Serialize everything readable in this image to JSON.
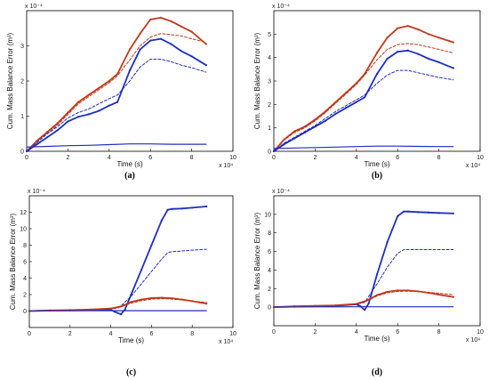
{
  "chart_data": [
    {
      "panel": "(a)",
      "type": "line",
      "xlabel": "Time (s)",
      "ylabel": "Cum. Mass Balance Error (m³)",
      "x_multiplier": "x 10⁴",
      "y_multiplier": "x 10⁻⁴",
      "xlim": [
        0,
        10
      ],
      "ylim": [
        0,
        4
      ],
      "xticks": [
        0,
        2,
        4,
        6,
        8,
        10
      ],
      "yticks": [
        0,
        1,
        2,
        3
      ],
      "grid": false,
      "series": [
        {
          "color": "#c0391b",
          "style": "solid-marker",
          "x": [
            0,
            0.5,
            1,
            1.5,
            2,
            2.5,
            3,
            3.5,
            4,
            4.4,
            5,
            5.5,
            6,
            6.5,
            7,
            7.5,
            8,
            8.7
          ],
          "y": [
            0,
            0.3,
            0.55,
            0.8,
            1.1,
            1.4,
            1.6,
            1.8,
            2.0,
            2.2,
            2.9,
            3.35,
            3.75,
            3.8,
            3.7,
            3.55,
            3.4,
            3.05
          ]
        },
        {
          "color": "#c0391b",
          "style": "dashed",
          "x": [
            0,
            0.5,
            1,
            1.5,
            2,
            2.5,
            3,
            3.5,
            4,
            4.4,
            5,
            5.5,
            6,
            6.5,
            7,
            7.5,
            8,
            8.7
          ],
          "y": [
            0,
            0.28,
            0.5,
            0.75,
            1.05,
            1.35,
            1.55,
            1.75,
            1.95,
            2.15,
            2.6,
            3.0,
            3.25,
            3.35,
            3.32,
            3.28,
            3.2,
            3.1
          ]
        },
        {
          "color": "#1f2fbf",
          "style": "solid-marker",
          "x": [
            0,
            0.5,
            1,
            1.5,
            2,
            2.5,
            3,
            3.5,
            4,
            4.4,
            5,
            5.5,
            6,
            6.5,
            7,
            7.5,
            8,
            8.7
          ],
          "y": [
            0,
            0.2,
            0.4,
            0.6,
            0.85,
            0.98,
            1.05,
            1.15,
            1.3,
            1.4,
            2.3,
            2.9,
            3.15,
            3.2,
            3.05,
            2.85,
            2.7,
            2.45
          ]
        },
        {
          "color": "#1f2fbf",
          "style": "dashed",
          "x": [
            0,
            0.5,
            1,
            1.5,
            2,
            2.5,
            3,
            3.5,
            4,
            4.4,
            5,
            5.5,
            6,
            6.5,
            7,
            7.5,
            8,
            8.7
          ],
          "y": [
            0,
            0.25,
            0.5,
            0.7,
            0.95,
            1.1,
            1.2,
            1.35,
            1.5,
            1.6,
            2.0,
            2.4,
            2.62,
            2.62,
            2.55,
            2.45,
            2.38,
            2.25
          ]
        },
        {
          "color": "#1f2fbf",
          "style": "solid",
          "x": [
            0,
            1,
            2,
            3,
            4,
            5,
            6,
            7,
            8,
            8.7
          ],
          "y": [
            0.12,
            0.14,
            0.16,
            0.17,
            0.19,
            0.21,
            0.21,
            0.2,
            0.2,
            0.2
          ]
        }
      ]
    },
    {
      "panel": "(b)",
      "type": "line",
      "xlabel": "Time (s)",
      "ylabel": "Cum. Mass Balance Error (m³)",
      "x_multiplier": "x 10⁴",
      "y_multiplier": "x 10⁻⁴",
      "xlim": [
        0,
        10
      ],
      "ylim": [
        0,
        6
      ],
      "xticks": [
        0,
        2,
        4,
        6,
        8,
        10
      ],
      "yticks": [
        0,
        1,
        2,
        3,
        4,
        5
      ],
      "grid": false,
      "series": [
        {
          "color": "#c0391b",
          "style": "solid-marker",
          "x": [
            0,
            0.5,
            1,
            1.5,
            2,
            2.5,
            3,
            3.5,
            4,
            4.4,
            5,
            5.5,
            6,
            6.5,
            7,
            7.5,
            8,
            8.7
          ],
          "y": [
            0,
            0.5,
            0.85,
            1.05,
            1.35,
            1.7,
            2.1,
            2.5,
            2.9,
            3.3,
            4.2,
            4.85,
            5.25,
            5.35,
            5.2,
            5.0,
            4.85,
            4.65
          ]
        },
        {
          "color": "#c0391b",
          "style": "dashed",
          "x": [
            0,
            0.5,
            1,
            1.5,
            2,
            2.5,
            3,
            3.5,
            4,
            4.4,
            5,
            5.5,
            6,
            6.5,
            7,
            7.5,
            8,
            8.7
          ],
          "y": [
            0,
            0.48,
            0.8,
            1.0,
            1.3,
            1.65,
            2.05,
            2.45,
            2.85,
            3.25,
            3.9,
            4.35,
            4.55,
            4.6,
            4.55,
            4.45,
            4.35,
            4.2
          ]
        },
        {
          "color": "#1f2fbf",
          "style": "solid-marker",
          "x": [
            0,
            0.5,
            1,
            1.5,
            2,
            2.5,
            3,
            3.5,
            4,
            4.4,
            5,
            5.5,
            6,
            6.5,
            7,
            7.5,
            8,
            8.7
          ],
          "y": [
            0,
            0.3,
            0.55,
            0.8,
            1.05,
            1.3,
            1.6,
            1.85,
            2.1,
            2.3,
            3.3,
            3.95,
            4.25,
            4.3,
            4.15,
            3.95,
            3.8,
            3.55
          ]
        },
        {
          "color": "#1f2fbf",
          "style": "dashed",
          "x": [
            0,
            0.5,
            1,
            1.5,
            2,
            2.5,
            3,
            3.5,
            4,
            4.4,
            5,
            5.5,
            6,
            6.5,
            7,
            7.5,
            8,
            8.7
          ],
          "y": [
            0,
            0.35,
            0.6,
            0.85,
            1.1,
            1.4,
            1.7,
            1.95,
            2.2,
            2.4,
            2.9,
            3.25,
            3.45,
            3.45,
            3.35,
            3.25,
            3.15,
            3.05
          ]
        },
        {
          "color": "#1f2fbf",
          "style": "solid",
          "x": [
            0,
            1,
            2,
            3,
            4,
            5,
            6,
            7,
            8,
            8.7
          ],
          "y": [
            0.12,
            0.14,
            0.16,
            0.18,
            0.2,
            0.22,
            0.22,
            0.21,
            0.2,
            0.2
          ]
        }
      ]
    },
    {
      "panel": "(c)",
      "type": "line",
      "xlabel": "Time (s)",
      "ylabel": "Cum. Mass Balance Error (m³)",
      "x_multiplier": "x 10⁴",
      "y_multiplier": "x 10⁻⁴",
      "xlim": [
        0,
        10
      ],
      "ylim": [
        -2,
        14
      ],
      "xticks": [
        0,
        2,
        4,
        6,
        8,
        10
      ],
      "yticks": [
        0,
        2,
        4,
        6,
        8,
        10,
        12
      ],
      "grid": false,
      "series": [
        {
          "color": "#1f2fbf",
          "style": "solid-marker",
          "x": [
            0,
            1,
            2,
            3,
            4,
            4.2,
            4.5,
            4.7,
            5,
            5.5,
            6,
            6.5,
            6.8,
            7,
            7.5,
            8,
            8.7
          ],
          "y": [
            0,
            0.05,
            0.08,
            0.1,
            0.15,
            -0.1,
            -0.4,
            0.2,
            2.0,
            5.0,
            8.0,
            11.0,
            12.3,
            12.4,
            12.45,
            12.55,
            12.7
          ]
        },
        {
          "color": "#1f2fbf",
          "style": "dashed",
          "x": [
            0,
            1,
            2,
            3,
            4,
            4.4,
            5,
            5.5,
            6,
            6.5,
            6.8,
            7,
            7.5,
            8,
            8.7
          ],
          "y": [
            0,
            0.05,
            0.1,
            0.15,
            0.25,
            0.4,
            1.8,
            3.3,
            4.8,
            6.3,
            7.1,
            7.2,
            7.3,
            7.4,
            7.5
          ]
        },
        {
          "color": "#c0391b",
          "style": "solid-marker",
          "x": [
            0,
            1,
            2,
            3,
            4,
            4.5,
            5,
            5.5,
            6,
            6.5,
            7,
            7.5,
            8,
            8.7
          ],
          "y": [
            0,
            0.08,
            0.12,
            0.18,
            0.3,
            0.55,
            1.1,
            1.4,
            1.58,
            1.62,
            1.55,
            1.4,
            1.2,
            0.9
          ]
        },
        {
          "color": "#c0391b",
          "style": "dashed",
          "x": [
            0,
            1,
            2,
            3,
            4,
            4.5,
            5,
            5.5,
            6,
            6.5,
            7,
            7.5,
            8,
            8.7
          ],
          "y": [
            0,
            0.08,
            0.12,
            0.18,
            0.3,
            0.5,
            0.95,
            1.25,
            1.45,
            1.5,
            1.45,
            1.35,
            1.2,
            1.05
          ]
        },
        {
          "color": "#1f2fbf",
          "style": "solid",
          "x": [
            0,
            2,
            4,
            6,
            8,
            8.7
          ],
          "y": [
            0.02,
            0.03,
            0.04,
            0.04,
            0.04,
            0.04
          ]
        }
      ]
    },
    {
      "panel": "(d)",
      "type": "line",
      "xlabel": "Time (s)",
      "ylabel": "Cum. Mass Balance Error (m³)",
      "x_multiplier": "x 10⁴",
      "y_multiplier": "x 10⁻⁴",
      "xlim": [
        0,
        10
      ],
      "ylim": [
        -2,
        12
      ],
      "xticks": [
        0,
        2,
        4,
        6,
        8,
        10
      ],
      "yticks": [
        0,
        2,
        4,
        6,
        8,
        10
      ],
      "grid": false,
      "series": [
        {
          "color": "#1f2fbf",
          "style": "solid-marker",
          "x": [
            0,
            1,
            2,
            3,
            4,
            4.2,
            4.4,
            4.6,
            5,
            5.5,
            6,
            6.3,
            6.5,
            7,
            7.5,
            8,
            8.7
          ],
          "y": [
            0,
            0.05,
            0.1,
            0.15,
            0.3,
            0.1,
            -0.3,
            0.4,
            3.5,
            7.0,
            9.8,
            10.3,
            10.3,
            10.25,
            10.2,
            10.15,
            10.1
          ]
        },
        {
          "color": "#1f2fbf",
          "style": "dashed",
          "x": [
            0,
            1,
            2,
            3,
            4,
            4.4,
            5,
            5.5,
            6,
            6.3,
            6.5,
            7,
            7.5,
            8,
            8.7
          ],
          "y": [
            0,
            0.05,
            0.1,
            0.15,
            0.3,
            0.5,
            2.5,
            4.3,
            5.8,
            6.2,
            6.2,
            6.2,
            6.2,
            6.2,
            6.2
          ]
        },
        {
          "color": "#c0391b",
          "style": "solid-marker",
          "x": [
            0,
            1,
            2,
            3,
            4,
            4.5,
            5,
            5.5,
            6,
            6.5,
            7,
            7.5,
            8,
            8.7
          ],
          "y": [
            0,
            0.1,
            0.15,
            0.2,
            0.35,
            0.7,
            1.3,
            1.65,
            1.8,
            1.8,
            1.7,
            1.55,
            1.35,
            1.1
          ]
        },
        {
          "color": "#c0391b",
          "style": "dashed",
          "x": [
            0,
            1,
            2,
            3,
            4,
            4.5,
            5,
            5.5,
            6,
            6.5,
            7,
            7.5,
            8,
            8.7
          ],
          "y": [
            0,
            0.1,
            0.15,
            0.2,
            0.35,
            0.65,
            1.2,
            1.55,
            1.7,
            1.72,
            1.68,
            1.6,
            1.5,
            1.35
          ]
        },
        {
          "color": "#1f2fbf",
          "style": "solid",
          "x": [
            0,
            2,
            4,
            6,
            8,
            8.7
          ],
          "y": [
            0.02,
            0.03,
            0.04,
            0.04,
            0.04,
            0.04
          ]
        }
      ]
    }
  ]
}
